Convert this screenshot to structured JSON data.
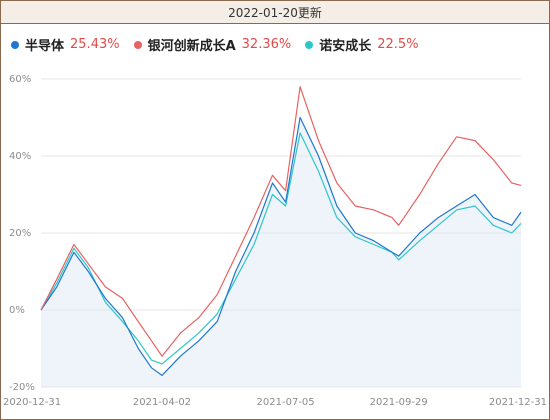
{
  "header": {
    "date_label": "2022-01-20更新"
  },
  "colors": {
    "frame": "#8a6a4f",
    "header_bg": "#f5eee6",
    "grid": "#e6e6e6",
    "area_fill": "#dbe7f3"
  },
  "chart_data": {
    "type": "line",
    "ylim": [
      -20,
      60
    ],
    "yticks": [
      "-20%",
      "0%",
      "20%",
      "40%",
      "60%"
    ],
    "xtick_labels": [
      "2020-12-31",
      "2021-04-02",
      "2021-07-05",
      "2021-09-29",
      "2021-12-31"
    ],
    "legend_position": "top-left",
    "grid": true,
    "series": [
      {
        "name": "半导体",
        "return_label": "25.43%",
        "color": "#1f78d1",
        "x": [
          "2020-12-31",
          "2021-01-12",
          "2021-01-25",
          "2021-02-05",
          "2021-02-18",
          "2021-03-03",
          "2021-03-15",
          "2021-03-25",
          "2021-04-02",
          "2021-04-16",
          "2021-04-30",
          "2021-05-14",
          "2021-05-28",
          "2021-06-11",
          "2021-06-25",
          "2021-07-05",
          "2021-07-16",
          "2021-07-30",
          "2021-08-13",
          "2021-08-27",
          "2021-09-10",
          "2021-09-24",
          "2021-09-29",
          "2021-10-15",
          "2021-10-29",
          "2021-11-12",
          "2021-11-26",
          "2021-12-10",
          "2021-12-24",
          "2021-12-31"
        ],
        "values": [
          0,
          6,
          15,
          10,
          3,
          -2,
          -10,
          -15,
          -17,
          -12,
          -8,
          -3,
          10,
          20,
          33,
          28,
          50,
          40,
          27,
          20,
          18,
          15,
          14,
          20,
          24,
          27,
          30,
          24,
          22,
          25.43
        ]
      },
      {
        "name": "银河创新成长A",
        "return_label": "32.36%",
        "color": "#e86262",
        "x": [
          "2020-12-31",
          "2021-01-12",
          "2021-01-25",
          "2021-02-05",
          "2021-02-18",
          "2021-03-03",
          "2021-03-15",
          "2021-03-25",
          "2021-04-02",
          "2021-04-16",
          "2021-04-30",
          "2021-05-14",
          "2021-05-28",
          "2021-06-11",
          "2021-06-25",
          "2021-07-05",
          "2021-07-16",
          "2021-07-30",
          "2021-08-13",
          "2021-08-27",
          "2021-09-10",
          "2021-09-24",
          "2021-09-29",
          "2021-10-15",
          "2021-10-29",
          "2021-11-12",
          "2021-11-26",
          "2021-12-10",
          "2021-12-24",
          "2021-12-31"
        ],
        "values": [
          0,
          8,
          17,
          12,
          6,
          3,
          -3,
          -8,
          -12,
          -6,
          -2,
          4,
          14,
          24,
          35,
          31,
          58,
          44,
          33,
          27,
          26,
          24,
          22,
          30,
          38,
          45,
          44,
          39,
          33,
          32.36
        ]
      },
      {
        "name": "诺安成长",
        "return_label": "22.5%",
        "color": "#2ec7c9",
        "x": [
          "2020-12-31",
          "2021-01-12",
          "2021-01-25",
          "2021-02-05",
          "2021-02-18",
          "2021-03-03",
          "2021-03-15",
          "2021-03-25",
          "2021-04-02",
          "2021-04-16",
          "2021-04-30",
          "2021-05-14",
          "2021-05-28",
          "2021-06-11",
          "2021-06-25",
          "2021-07-05",
          "2021-07-16",
          "2021-07-30",
          "2021-08-13",
          "2021-08-27",
          "2021-09-10",
          "2021-09-24",
          "2021-09-29",
          "2021-10-15",
          "2021-10-29",
          "2021-11-12",
          "2021-11-26",
          "2021-12-10",
          "2021-12-24",
          "2021-12-31"
        ],
        "values": [
          0,
          7,
          16,
          11,
          2,
          -3,
          -8,
          -13,
          -14,
          -10,
          -6,
          -1,
          8,
          17,
          30,
          27,
          46,
          36,
          24,
          19,
          17,
          15,
          13,
          18,
          22,
          26,
          27,
          22,
          20,
          22.5
        ]
      }
    ]
  }
}
